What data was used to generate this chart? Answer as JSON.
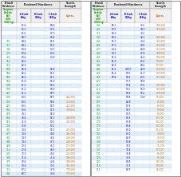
{
  "bg_color": "#ffffff",
  "brinell_color": "#009900",
  "rockwell_color": "#0000cc",
  "tensile_color": "#cc6600",
  "header_text_color": "#333333",
  "left_table": [
    [
      "",
      "85.6",
      "",
      "68.0",
      ""
    ],
    [
      "",
      "85.3",
      "",
      "67.5",
      ""
    ],
    [
      "",
      "85.0",
      "",
      "67.0",
      ""
    ],
    [
      "",
      "84.7",
      "",
      "66.4",
      ""
    ],
    [
      "767",
      "84.4",
      "",
      "65.9",
      ""
    ],
    [
      "757",
      "84.1",
      "",
      "65.3",
      ""
    ],
    [
      "745",
      "83.8",
      "",
      "64.7",
      ""
    ],
    [
      "733",
      "83.4",
      "",
      "64.3",
      ""
    ],
    [
      "722",
      "83.4",
      "",
      "64.0",
      ""
    ],
    [
      "712",
      "82.2",
      "",
      "",
      ""
    ],
    [
      "710",
      "82.6",
      "",
      "",
      ""
    ],
    [
      "698",
      "82.6",
      "",
      "62.9",
      ""
    ],
    [
      "684",
      "82.2",
      "",
      "61.5",
      ""
    ],
    [
      "682",
      "82.2",
      "",
      "61.1",
      ""
    ],
    [
      "660",
      "81.8",
      "",
      "61.0",
      ""
    ],
    [
      "648",
      "81.3",
      "",
      "60.1",
      ""
    ],
    [
      "638",
      "81.2",
      "",
      "60.0",
      ""
    ],
    [
      "627",
      "81.1",
      "",
      "59.7",
      ""
    ],
    [
      "539",
      "80.5",
      "",
      "59.7",
      "324,000"
    ],
    [
      "530",
      "80.5",
      "",
      "59.2",
      "314,000"
    ],
    [
      "627",
      "80.5",
      "",
      "58.7",
      "323,000"
    ],
    [
      "601",
      "79.6",
      "",
      "57.3",
      "309,000"
    ],
    [
      "578",
      "79.1",
      "",
      "56.0",
      ""
    ],
    [
      "566",
      "78.4",
      "",
      "54.7",
      "289,000"
    ],
    [
      "514",
      "71.6",
      "",
      "53.5",
      "274,000"
    ],
    [
      "534",
      "75.8",
      "",
      "53.1",
      ""
    ],
    [
      "495",
      "74.6",
      "",
      "51.0",
      "263,000"
    ],
    [
      "477",
      "74.6",
      "",
      "48.5",
      "241,000"
    ],
    [
      "461",
      "74.9",
      "",
      "46.5",
      "230,000"
    ],
    [
      "444",
      "74.0",
      "",
      "47.1",
      "228,000"
    ],
    [
      "428",
      "73.2",
      "",
      "45.1",
      "217,000"
    ],
    [
      "412",
      "72.8",
      "",
      "44.3",
      "205,000"
    ],
    [
      "401",
      "72.3",
      "",
      "43.1",
      "202,000"
    ],
    [
      "388",
      "71.4",
      "",
      "41.6",
      "194,000"
    ],
    [
      "375",
      "70.6",
      "",
      "40.4",
      "188,000"
    ],
    [
      "363",
      "70.0",
      "",
      "39.1",
      "182,000"
    ],
    [
      "352",
      "67.2",
      "",
      "37.9",
      "178,000"
    ],
    [
      "341",
      "68.7",
      "",
      "36.6",
      "170,000"
    ]
  ],
  "right_table": [
    [
      "331",
      "58.1",
      "",
      "35.5",
      "166,000"
    ],
    [
      "321",
      "67.5",
      "",
      "34.3",
      "160,000"
    ],
    [
      "311",
      "66.0",
      "",
      "33.1",
      ""
    ],
    [
      "302",
      "66.2",
      "",
      "32.1",
      "120,000"
    ],
    [
      "293",
      "65.7",
      "",
      "30.9",
      "116,000"
    ],
    [
      "285",
      "67.3",
      "",
      "29.9",
      "114,000"
    ],
    [
      "277",
      "64.6",
      "",
      "28.8",
      "112,000"
    ],
    [
      "269",
      "64.1",
      "",
      "27.6",
      "109,000"
    ],
    [
      "262",
      "61.5",
      "",
      "26.6",
      "104,000"
    ],
    [
      "255",
      "61.0",
      "",
      "25.4",
      "98,000"
    ],
    [
      "248",
      "62.9",
      "",
      "24.2",
      "97,000"
    ],
    [
      "241",
      "61.5",
      "100.0",
      "22.8",
      "119,000"
    ],
    [
      "235",
      "51.4",
      "99.0",
      "21.7",
      "115,000"
    ],
    [
      "229",
      "60.8",
      "98.2",
      "20.5",
      "111,000"
    ],
    [
      "223",
      "",
      "97.7",
      "18.8",
      ""
    ],
    [
      "217",
      "",
      "96.4",
      "17.5",
      "105,000"
    ],
    [
      "212",
      "",
      "95.5",
      "16.0",
      "102,000"
    ],
    [
      "207",
      "",
      "94.6",
      "15.2",
      "100,000"
    ],
    [
      "201",
      "",
      "93.8",
      "13.8",
      "95,000"
    ],
    [
      "197",
      "",
      "82.8",
      "",
      "85,000"
    ],
    [
      "192",
      "",
      "91.9",
      "",
      "89,000"
    ],
    [
      "187",
      "",
      "90.7",
      "",
      "89,000"
    ],
    [
      "183",
      "",
      "90.3",
      "",
      "89,000"
    ],
    [
      "180",
      "",
      "89.3",
      "",
      "87,000"
    ],
    [
      "174",
      "",
      "87.8",
      "",
      "86,000"
    ],
    [
      "170",
      "",
      "86.8",
      "",
      "83,000"
    ],
    [
      "167",
      "",
      "86.0",
      "",
      "81,000"
    ],
    [
      "163",
      "",
      "85.0",
      "",
      "79,000"
    ],
    [
      "156",
      "",
      "82.9",
      "",
      "78,000"
    ],
    [
      "149",
      "",
      "80.8",
      "",
      "75,000"
    ],
    [
      "141",
      "",
      "79.1",
      "",
      "71,000"
    ],
    [
      "137",
      "",
      "78.4",
      "",
      "67,000"
    ],
    [
      "131",
      "",
      "76.8",
      "",
      "65,000"
    ],
    [
      "126",
      "",
      "75.9",
      "",
      "65,000"
    ],
    [
      "121",
      "",
      "69.8",
      "",
      "60,000"
    ],
    [
      "116",
      "",
      "71.5",
      "",
      "58,000"
    ],
    [
      "111",
      "",
      "69.7",
      "",
      "56,000"
    ]
  ]
}
